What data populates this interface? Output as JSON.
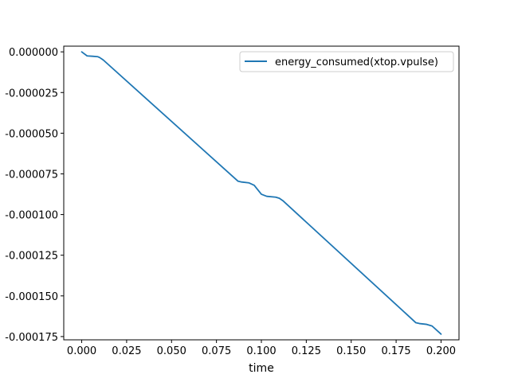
{
  "colors": {
    "series": "#1f77b4",
    "axes": "#000000",
    "legend_border": "#cccccc",
    "background": "#ffffff"
  },
  "chart_data": {
    "type": "line",
    "title": "",
    "xlabel": "time",
    "ylabel": "",
    "grid": false,
    "legend_placement": "top-right",
    "xlim": [
      -0.01,
      0.21
    ],
    "ylim": [
      -0.000177,
      3.5e-06
    ],
    "xticks": [
      0.0,
      0.025,
      0.05,
      0.075,
      0.1,
      0.125,
      0.15,
      0.175,
      0.2
    ],
    "xtick_labels": [
      "0.000",
      "0.025",
      "0.050",
      "0.075",
      "0.100",
      "0.125",
      "0.150",
      "0.175",
      "0.200"
    ],
    "yticks": [
      0.0,
      -2.5e-05,
      -5e-05,
      -7.5e-05,
      -0.0001,
      -0.000125,
      -0.00015,
      -0.000175
    ],
    "ytick_labels": [
      "0.000000",
      "-0.000025",
      "-0.000050",
      "-0.000075",
      "-0.000100",
      "-0.000125",
      "-0.000150",
      "-0.000175"
    ],
    "series": [
      {
        "name": "energy_consumed(xtop.vpulse)",
        "x": [
          0.0,
          0.003,
          0.006,
          0.009,
          0.01,
          0.012,
          0.087,
          0.089,
          0.093,
          0.096,
          0.1,
          0.103,
          0.108,
          0.11,
          0.112,
          0.186,
          0.188,
          0.192,
          0.195,
          0.2
        ],
        "y": [
          0.0,
          -2.5e-06,
          -2.7e-06,
          -3e-06,
          -3.5e-06,
          -5e-06,
          -7.95e-05,
          -8e-05,
          -8.05e-05,
          -8.2e-05,
          -8.75e-05,
          -8.88e-05,
          -8.93e-05,
          -9e-05,
          -9.15e-05,
          -0.0001665,
          -0.000167,
          -0.0001675,
          -0.0001685,
          -0.0001735
        ]
      }
    ]
  }
}
